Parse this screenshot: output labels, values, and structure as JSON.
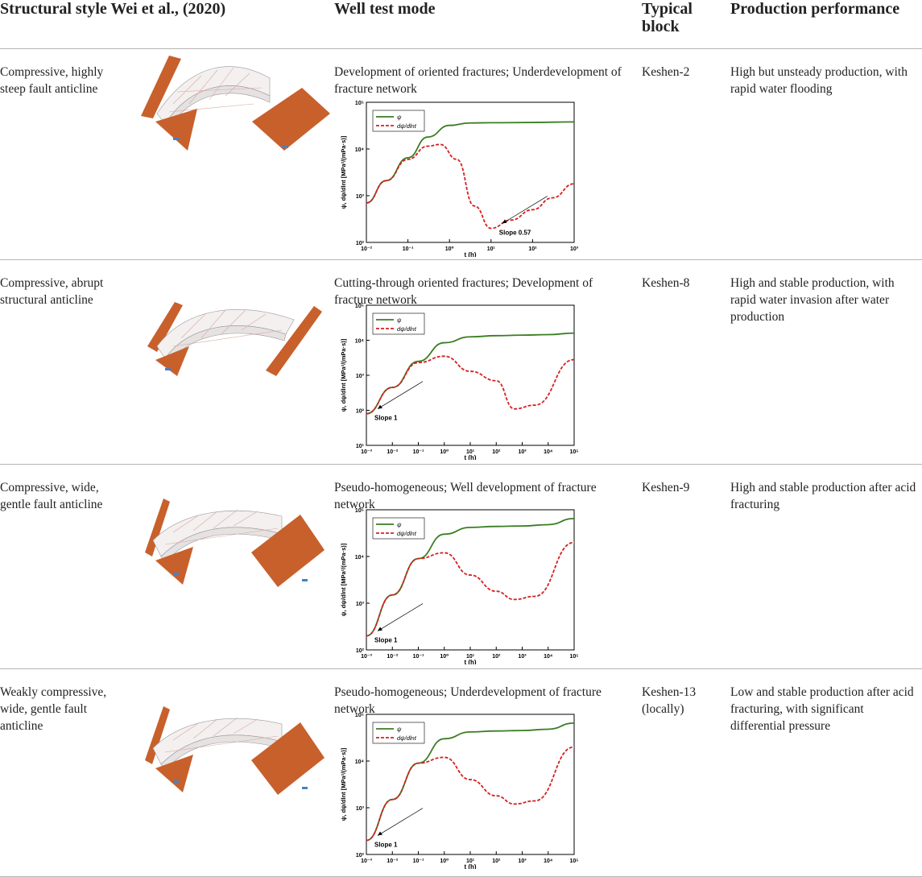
{
  "headers": {
    "structural_style": "Structural style Wei et al., (2020)",
    "well_test_mode": "Well test mode",
    "typical_block": "Typical block",
    "production_performance": "Production performance"
  },
  "colors": {
    "psi_line": "#3a7d22",
    "derivative_line": "#d42020",
    "fault_plane": "#c8602c",
    "rule_line": "#b5b5b5"
  },
  "rows": [
    {
      "structural_style": "Compressive, highly steep fault anticline",
      "well_test_mode": "Development of oriented fractures; Underdevelopment of fracture network",
      "typical_block": "Keshen-2",
      "production_performance": "High but unsteady production, with rapid water flooding"
    },
    {
      "structural_style": "Compressive, abrupt structural anticline",
      "well_test_mode": "Cutting-through oriented fractures; Development of fracture network",
      "typical_block": "Keshen-8",
      "production_performance": "High and stable production, with rapid water invasion after water production"
    },
    {
      "structural_style": "Compressive, wide, gentle fault anticline",
      "well_test_mode": "Pseudo-homogeneous; Well development of fracture network",
      "typical_block": "Keshen-9",
      "production_performance": "High and stable production after acid fracturing"
    },
    {
      "structural_style": "Weakly compressive, wide, gentle fault anticline",
      "well_test_mode": "Pseudo-homogeneous; Underdevelopment of fracture network",
      "typical_block": "Keshen-13 (locally)",
      "production_performance": "Low and stable production after acid fracturing, with significant differential pressure"
    }
  ],
  "chart_data": [
    {
      "type": "line",
      "log_x": true,
      "log_y": true,
      "xlim": [
        0.01,
        1000
      ],
      "ylim": [
        100,
        100000
      ],
      "x_ticks": [
        "10⁻²",
        "10⁻¹",
        "10⁰",
        "10¹",
        "10²",
        "10³"
      ],
      "y_ticks": [
        "10²",
        "10³",
        "10⁴",
        "10⁵"
      ],
      "xlabel": "t (h)",
      "ylabel": "ψ, dψ/dlnt [MPa²/(mPa·s)]",
      "legend": "top-left",
      "series": [
        {
          "name": "ψ",
          "x": [
            0.01,
            0.03,
            0.1,
            0.3,
            1,
            3,
            10,
            100,
            1000
          ],
          "y": [
            700,
            2100,
            6500,
            18000,
            32000,
            36000,
            36500,
            37000,
            38000
          ]
        },
        {
          "name": "dψ/dlnt",
          "x": [
            0.01,
            0.03,
            0.1,
            0.3,
            0.6,
            1.5,
            4,
            10,
            30,
            100,
            300,
            1000
          ],
          "y": [
            700,
            2100,
            6000,
            11500,
            12500,
            6000,
            600,
            200,
            300,
            500,
            900,
            1800
          ]
        }
      ],
      "annotation": "Slope 0.57"
    },
    {
      "type": "line",
      "log_x": true,
      "log_y": true,
      "xlim": [
        0.001,
        100000
      ],
      "ylim": [
        10,
        100000
      ],
      "x_ticks": [
        "10⁻³",
        "10⁻²",
        "10⁻¹",
        "10⁰",
        "10¹",
        "10²",
        "10³",
        "10⁴",
        "10⁵"
      ],
      "y_ticks": [
        "10¹",
        "10²",
        "10³",
        "10⁴",
        "10⁵"
      ],
      "xlabel": "t (h)",
      "ylabel": "ψ, dψ/dlnt [MPa²/(mPa·s)]",
      "legend": "top-left",
      "series": [
        {
          "name": "ψ",
          "x": [
            0.001,
            0.01,
            0.1,
            1,
            10,
            100,
            1000,
            10000,
            100000
          ],
          "y": [
            80,
            450,
            2500,
            8500,
            12500,
            13500,
            14000,
            14500,
            16000
          ]
        },
        {
          "name": "dψ/dlnt",
          "x": [
            0.001,
            0.01,
            0.1,
            1,
            10,
            100,
            500,
            3000,
            100000
          ],
          "y": [
            80,
            450,
            2300,
            3500,
            1300,
            700,
            110,
            140,
            2800
          ]
        }
      ],
      "annotation": "Slope 1"
    },
    {
      "type": "line",
      "log_x": true,
      "log_y": true,
      "xlim": [
        0.001,
        100000
      ],
      "ylim": [
        100,
        100000
      ],
      "x_ticks": [
        "10⁻³",
        "10⁻²",
        "10⁻¹",
        "10⁰",
        "10¹",
        "10²",
        "10³",
        "10⁴",
        "10⁵"
      ],
      "y_ticks": [
        "10²",
        "10³",
        "10⁴",
        "10⁵"
      ],
      "xlabel": "t (h)",
      "ylabel": "ψ, dψ/dlnt [MPa²/(mPa·s)]",
      "legend": "top-left",
      "series": [
        {
          "name": "ψ",
          "x": [
            0.001,
            0.01,
            0.1,
            1,
            10,
            100,
            1000,
            10000,
            100000
          ],
          "y": [
            200,
            1500,
            9000,
            30000,
            42000,
            44000,
            45000,
            48000,
            65000
          ]
        },
        {
          "name": "dψ/dlnt",
          "x": [
            0.001,
            0.01,
            0.1,
            1,
            10,
            100,
            500,
            3000,
            100000
          ],
          "y": [
            200,
            1500,
            9000,
            12000,
            4000,
            1800,
            1200,
            1400,
            20000
          ]
        }
      ],
      "annotation": "Slope 1"
    },
    {
      "type": "line",
      "log_x": true,
      "log_y": true,
      "xlim": [
        0.001,
        100000
      ],
      "ylim": [
        100,
        100000
      ],
      "x_ticks": [
        "10⁻³",
        "10⁻²",
        "10⁻¹",
        "10⁰",
        "10¹",
        "10²",
        "10³",
        "10⁴",
        "10⁵"
      ],
      "y_ticks": [
        "10²",
        "10³",
        "10⁴",
        "10⁵"
      ],
      "xlabel": "t (h)",
      "ylabel": "ψ, dψ/dlnt [MPa²/(mPa·s)]",
      "legend": "top-left",
      "series": [
        {
          "name": "ψ",
          "x": [
            0.001,
            0.01,
            0.1,
            1,
            10,
            100,
            1000,
            10000,
            100000
          ],
          "y": [
            200,
            1500,
            9000,
            30000,
            42000,
            44000,
            45000,
            48000,
            65000
          ]
        },
        {
          "name": "dψ/dlnt",
          "x": [
            0.001,
            0.01,
            0.1,
            1,
            10,
            100,
            500,
            3000,
            100000
          ],
          "y": [
            200,
            1500,
            9000,
            12000,
            4000,
            1800,
            1200,
            1400,
            20000
          ]
        }
      ],
      "annotation": "Slope 1"
    }
  ]
}
